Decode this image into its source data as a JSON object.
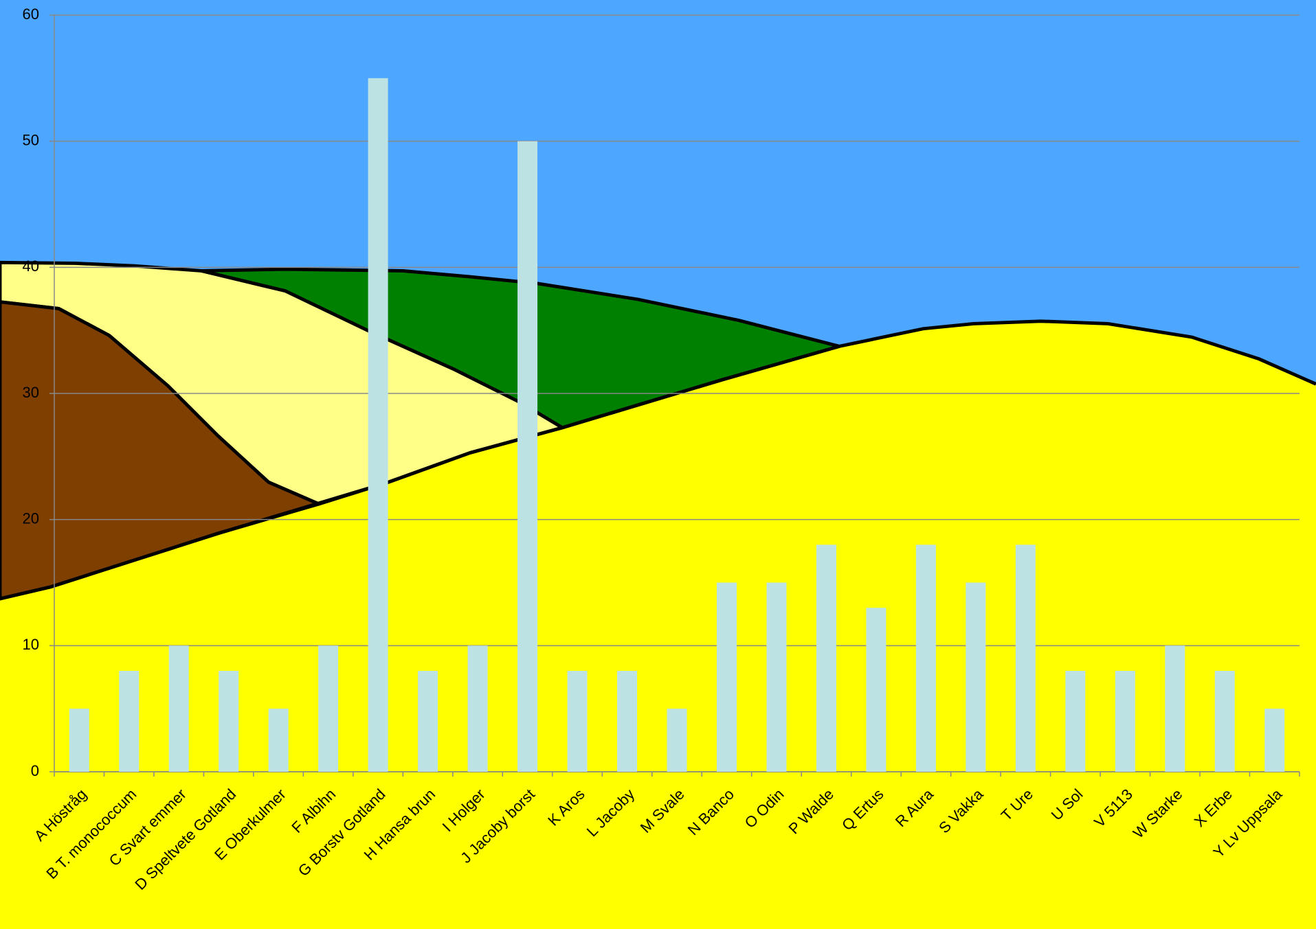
{
  "chart_data": {
    "type": "bar",
    "categories": [
      "A Höstråg",
      "B T. monococcum",
      "C Svart emmer",
      "D Speltvete Gotland",
      "E Oberkulmer",
      "F Albihn",
      "G Borstv Gotland",
      "H Hansa brun",
      "I Holger",
      "J Jacoby borst",
      "K Aros",
      "L Jacoby",
      "M Svale",
      "N Banco",
      "O Odin",
      "P Walde",
      "Q Ertus",
      "R Aura",
      "S Vakka",
      "T Ure",
      "U Sol",
      "V 5113",
      "W Starke",
      "X Erbe",
      "Y Lv Uppsala"
    ],
    "values": [
      5,
      8,
      10,
      8,
      5,
      10,
      55,
      8,
      10,
      50,
      8,
      8,
      5,
      15,
      15,
      18,
      13,
      18,
      15,
      18,
      8,
      8,
      10,
      8,
      5
    ],
    "color": "#bde2e4",
    "ylim": [
      0,
      60
    ],
    "yticks": [
      0,
      10,
      20,
      30,
      40,
      50,
      60
    ],
    "grid": true
  }
}
